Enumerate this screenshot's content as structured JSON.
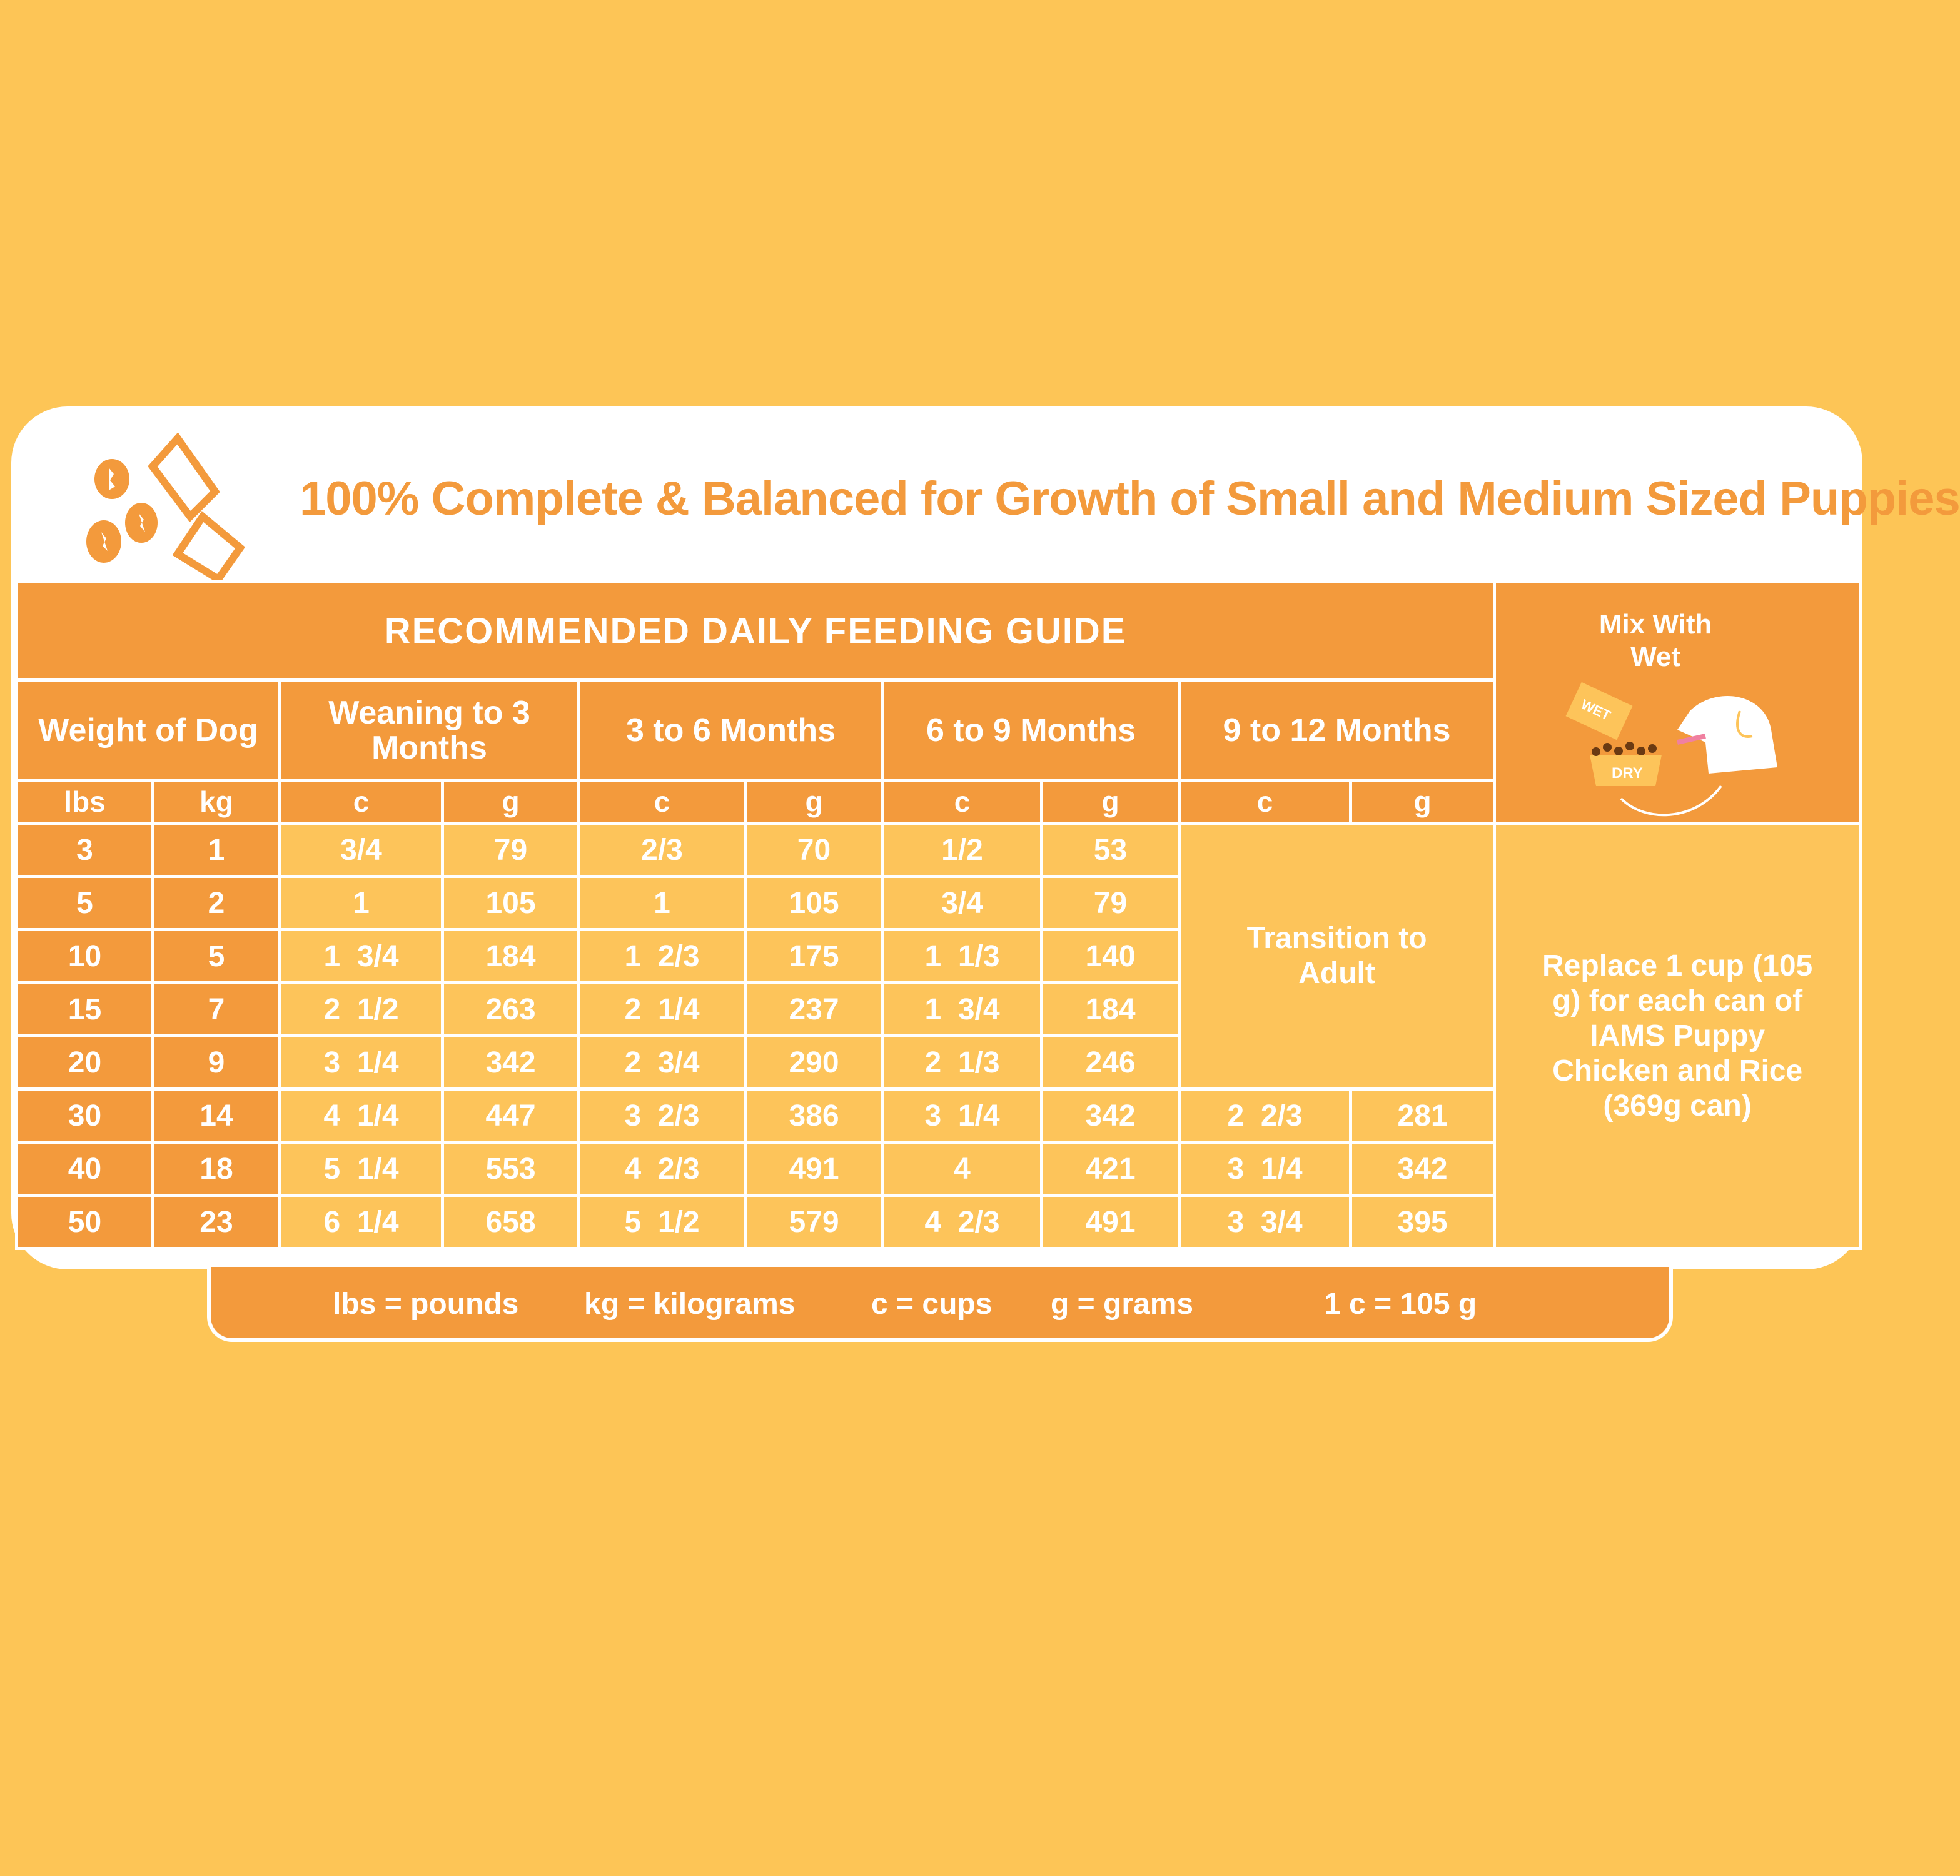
{
  "header": {
    "title": "100% Complete & Balanced for Growth of Small and Medium Sized Puppies"
  },
  "guide_title": "RECOMMENDED DAILY FEEDING GUIDE",
  "columns": {
    "weight": "Weight of Dog",
    "ages": [
      "Weaning to 3 Months",
      "3 to 6 Months",
      "6 to 9 Months",
      "9 to 12 Months"
    ],
    "units": [
      "lbs",
      "kg",
      "c",
      "g",
      "c",
      "g",
      "c",
      "g",
      "c",
      "g"
    ]
  },
  "rows": [
    [
      "3",
      "1",
      "3/4",
      "79",
      "2/3",
      "70",
      "1/2",
      "53"
    ],
    [
      "5",
      "2",
      "1",
      "105",
      "1",
      "105",
      "3/4",
      "79"
    ],
    [
      "10",
      "5",
      "1  3/4",
      "184",
      "1  2/3",
      "175",
      "1  1/3",
      "140"
    ],
    [
      "15",
      "7",
      "2  1/2",
      "263",
      "2  1/4",
      "237",
      "1  3/4",
      "184"
    ],
    [
      "20",
      "9",
      "3  1/4",
      "342",
      "2  3/4",
      "290",
      "2  1/3",
      "246"
    ],
    [
      "30",
      "14",
      "4  1/4",
      "447",
      "3  2/3",
      "386",
      "3  1/4",
      "342",
      "2  2/3",
      "281"
    ],
    [
      "40",
      "18",
      "5  1/4",
      "553",
      "4  2/3",
      "491",
      "4",
      "421",
      "3  1/4",
      "342"
    ],
    [
      "50",
      "23",
      "6  1/4",
      "658",
      "5  1/2",
      "579",
      "4  2/3",
      "491",
      "3  3/4",
      "395"
    ]
  ],
  "transition": "Transition to Adult",
  "mix": {
    "title": "Mix With Wet",
    "wet_label": "WET",
    "dry_label": "DRY"
  },
  "replace_note": "Replace 1 cup (105 g) for each can of IAMS Puppy Chicken and Rice (369g can)",
  "legend": [
    "lbs = pounds",
    "kg = kilograms",
    "c = cups",
    "g = grams",
    "1 c = 105 g"
  ],
  "colors": {
    "background": "#FDC556",
    "orange": "#F39A3C",
    "light": "#FDC45A",
    "white": "#FFFFFF"
  }
}
